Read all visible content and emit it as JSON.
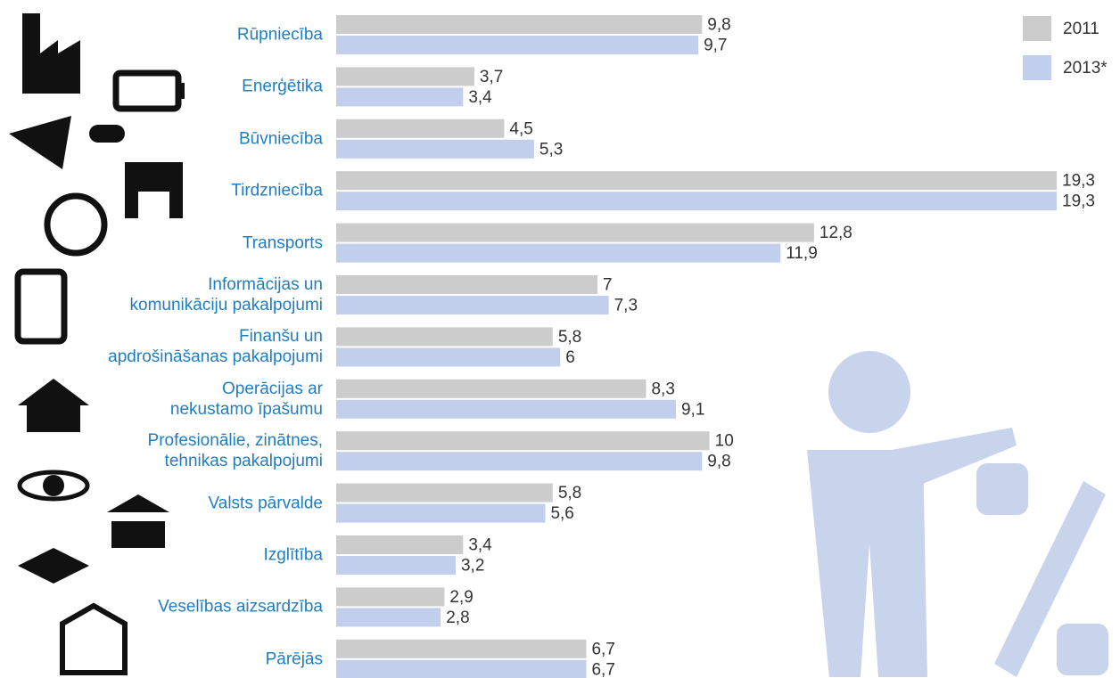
{
  "chart_data": {
    "type": "bar",
    "orientation": "horizontal",
    "categories": [
      "Rūpniecība",
      "Enerģētika",
      "Būvniecība",
      "Tirdzniecība",
      "Transports",
      "Informācijas un\nkomunikāciju pakalpojumi",
      "Finanšu un\napdrošināšanas pakalpojumi",
      "Operācijas ar\nnekustamo īpašumu",
      "Profesionālie, zinātnes,\ntehnikas pakalpojumi",
      "Valsts pārvalde",
      "Izglītība",
      "Veselības aizsardzība",
      "Pārējās"
    ],
    "series": [
      {
        "name": "2011",
        "color": "#cccccc",
        "values": [
          9.8,
          3.7,
          4.5,
          19.3,
          12.8,
          7,
          5.8,
          8.3,
          10,
          5.8,
          3.4,
          2.9,
          6.7
        ],
        "value_labels": [
          "9,8",
          "3,7",
          "4,5",
          "19,3",
          "12,8",
          "7",
          "5,8",
          "8,3",
          "10",
          "5,8",
          "3,4",
          "2,9",
          "6,7"
        ]
      },
      {
        "name": "2013*",
        "color": "#c1cfec",
        "values": [
          9.7,
          3.4,
          5.3,
          19.3,
          11.9,
          7.3,
          6,
          9.1,
          9.8,
          5.6,
          3.2,
          2.8,
          6.7
        ],
        "value_labels": [
          "9,7",
          "3,4",
          "5,3",
          "19,3",
          "11,9",
          "7,3",
          "6",
          "9,1",
          "9,8",
          "5,6",
          "3,2",
          "2,8",
          "6,7"
        ]
      }
    ],
    "legend": "top-right"
  }
}
